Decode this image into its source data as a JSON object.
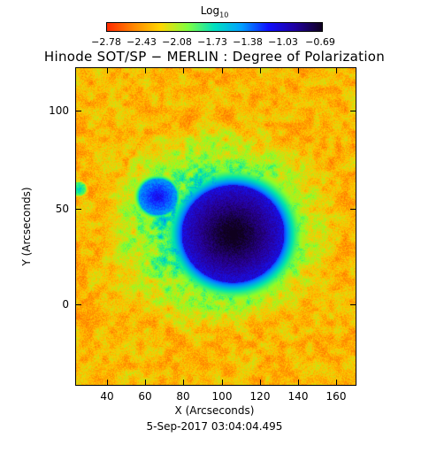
{
  "colorbar": {
    "title": "Log",
    "title_sub": "10",
    "ticks": [
      "−2.78",
      "−2.43",
      "−2.08",
      "−1.73",
      "−1.38",
      "−1.03",
      "−0.69"
    ],
    "colors": [
      "#ff2a00",
      "#ff8800",
      "#ffd700",
      "#80ff40",
      "#00e0c0",
      "#00a0ff",
      "#1010ff",
      "#2000a0",
      "#100020"
    ]
  },
  "plot": {
    "title": "Hinode SOT/SP − MERLIN : Degree of Polarization",
    "xlabel": "X (Arcseconds)",
    "ylabel": "Y (Arcseconds)",
    "xticks": [
      "40",
      "60",
      "80",
      "100",
      "120",
      "140",
      "160"
    ],
    "yticks": [
      "100",
      "50",
      "0"
    ],
    "xrange": [
      23,
      167
    ],
    "yrange": [
      -45,
      122
    ]
  },
  "timestamp": "5-Sep-2017 03:04:04.495"
}
